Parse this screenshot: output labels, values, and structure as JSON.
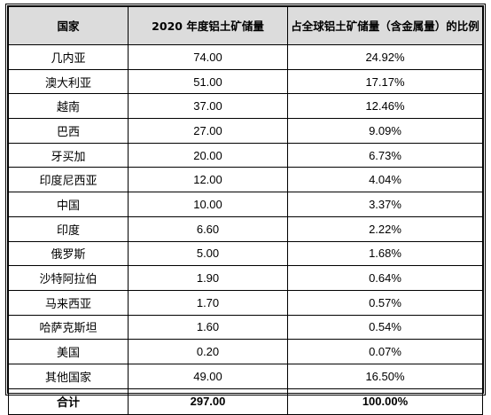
{
  "headers": {
    "country": "国家",
    "reserves": "2020 年度铝土矿储量",
    "share": "占全球铝土矿储量（含金属量）的比例"
  },
  "rows": [
    {
      "country": "几内亚",
      "reserves": "74.00",
      "share": "24.92%"
    },
    {
      "country": "澳大利亚",
      "reserves": "51.00",
      "share": "17.17%"
    },
    {
      "country": "越南",
      "reserves": "37.00",
      "share": "12.46%"
    },
    {
      "country": "巴西",
      "reserves": "27.00",
      "share": "9.09%"
    },
    {
      "country": "牙买加",
      "reserves": "20.00",
      "share": "6.73%"
    },
    {
      "country": "印度尼西亚",
      "reserves": "12.00",
      "share": "4.04%"
    },
    {
      "country": "中国",
      "reserves": "10.00",
      "share": "3.37%"
    },
    {
      "country": "印度",
      "reserves": "6.60",
      "share": "2.22%"
    },
    {
      "country": "俄罗斯",
      "reserves": "5.00",
      "share": "1.68%"
    },
    {
      "country": "沙特阿拉伯",
      "reserves": "1.90",
      "share": "0.64%"
    },
    {
      "country": "马来西亚",
      "reserves": "1.70",
      "share": "0.57%"
    },
    {
      "country": "哈萨克斯坦",
      "reserves": "1.60",
      "share": "0.54%"
    },
    {
      "country": "美国",
      "reserves": "0.20",
      "share": "0.07%"
    },
    {
      "country": "其他国家",
      "reserves": "49.00",
      "share": "16.50%"
    }
  ],
  "total": {
    "country": "合计",
    "reserves": "297.00",
    "share": "100.00%"
  }
}
